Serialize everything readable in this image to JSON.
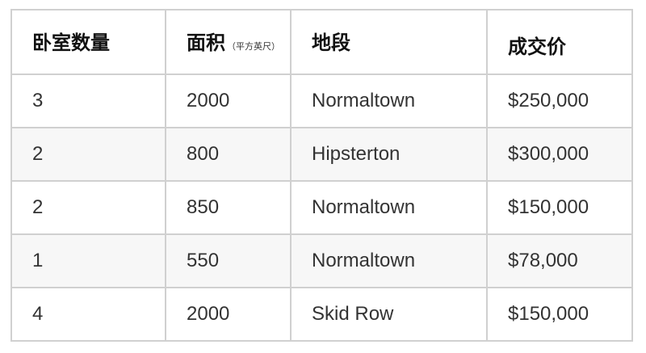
{
  "table": {
    "headers": [
      {
        "label": "卧室数量"
      },
      {
        "label": "面积",
        "unit": "（平方英尺）"
      },
      {
        "label": "地段"
      },
      {
        "label": "成交价"
      }
    ],
    "rows": [
      [
        "3",
        "2000",
        "Normaltown",
        "$250,000"
      ],
      [
        "2",
        "800",
        "Hipsterton",
        "$300,000"
      ],
      [
        "2",
        "850",
        "Normaltown",
        "$150,000"
      ],
      [
        "1",
        "550",
        "Normaltown",
        "$78,000"
      ],
      [
        "4",
        "2000",
        "Skid Row",
        "$150,000"
      ]
    ]
  },
  "colors": {
    "border": "#d0d0d0",
    "stripe": "#f7f7f7",
    "text": "#333333"
  }
}
